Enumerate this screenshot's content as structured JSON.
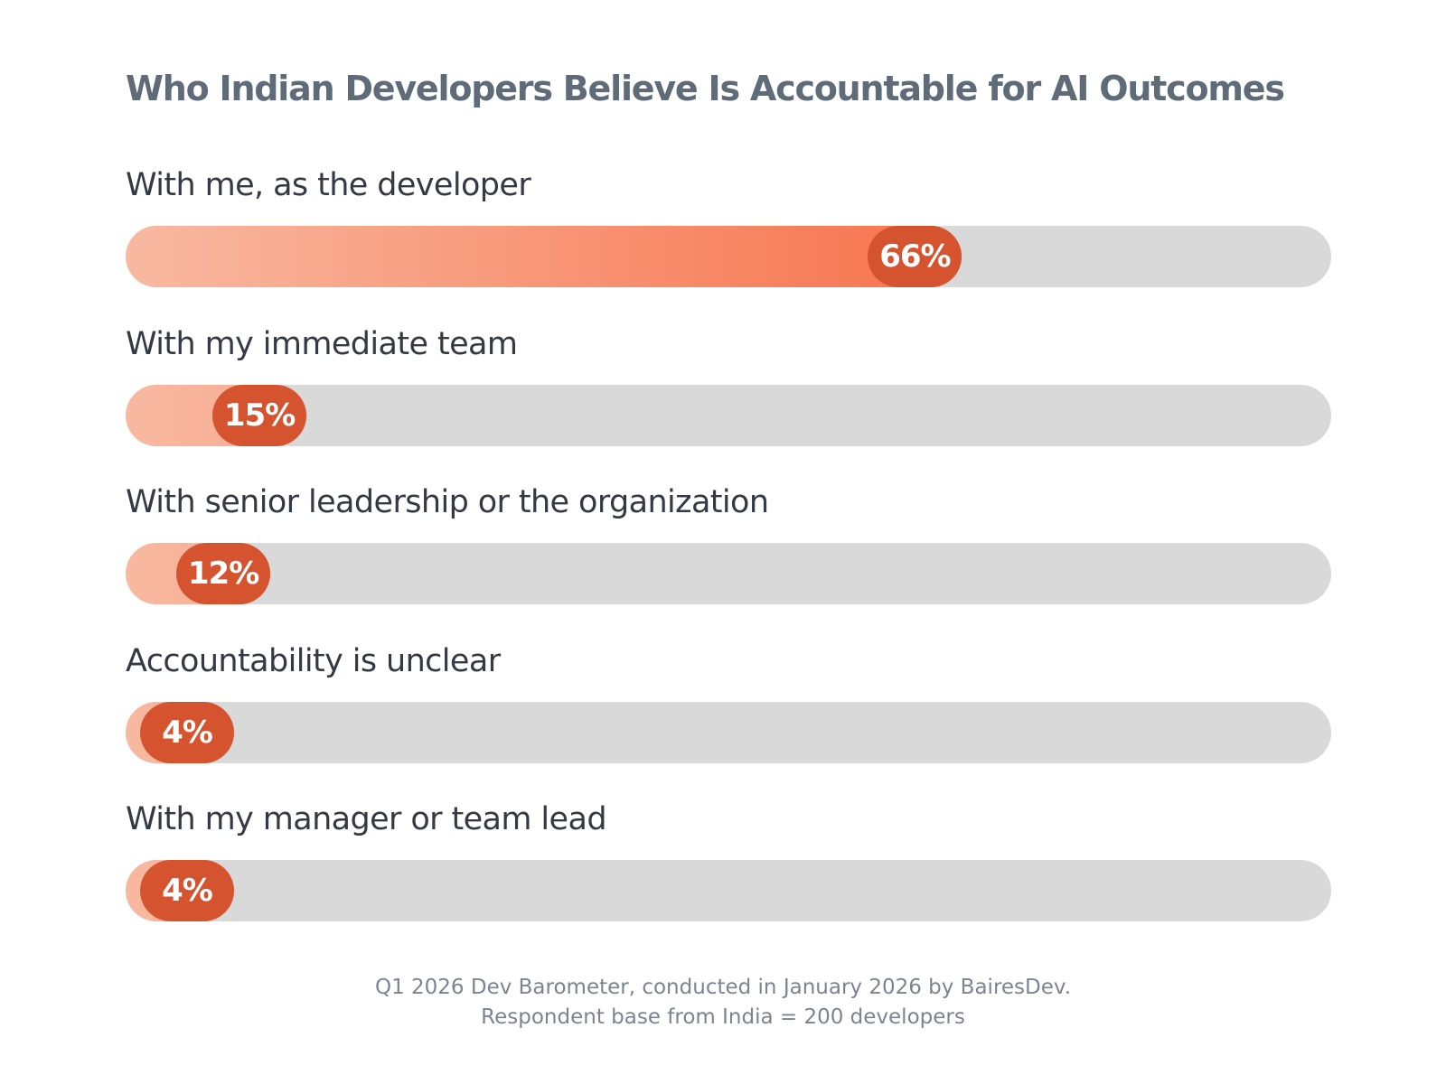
{
  "chart_data": {
    "type": "bar",
    "orientation": "horizontal",
    "title": "Who Indian Developers Believe Is Accountable for AI Outcomes",
    "categories": [
      "With me, as the developer",
      "With my immediate team",
      "With senior leadership or the organization",
      "Accountability is unclear",
      "With my manager or team lead"
    ],
    "values": [
      66,
      15,
      12,
      4,
      4
    ],
    "value_labels": [
      "66%",
      "15%",
      "12%",
      "4%",
      "4%"
    ],
    "xlim": [
      0,
      100
    ],
    "unit": "%",
    "grid": false,
    "colors": {
      "gradient_start": "#f8b9a1",
      "gradient_end": "#f76d45",
      "bubble": "#d5532f",
      "track": "#d9d9d9"
    }
  },
  "footer": {
    "line1": "Q1 2026 Dev Barometer, conducted in January 2026 by BairesDev.",
    "line2": "Respondent base from India = 200 developers"
  }
}
